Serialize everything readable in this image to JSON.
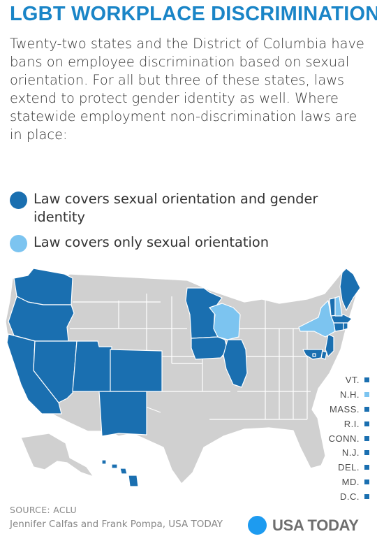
{
  "title": "LGBT WORKPLACE DISCRIMINATION",
  "intro": "Twenty-two states and the District of Columbia have bans on employee discrimination based on sexual orientation. For all but three of these states, laws extend to protect gender identity as well. Where statewide employment non-discrimination laws are in place:",
  "colors": {
    "full": "#1a6fb0",
    "partial": "#7cc4f0",
    "none": "#d0d0d0",
    "border": "#ffffff"
  },
  "legend": [
    {
      "key": "full",
      "label": "Law covers sexual orientation and gender identity"
    },
    {
      "key": "partial",
      "label": "Law covers only sexual orientation"
    }
  ],
  "states_full": [
    "Wash.",
    "Ore.",
    "Calif.",
    "Nev.",
    "Utah",
    "Colo.",
    "N.M.",
    "Minn.",
    "Iowa",
    "Ill.",
    "Maine",
    "Hawaii"
  ],
  "states_partial": [
    "Wis.",
    "N.Y."
  ],
  "small_states": [
    {
      "name": "VT.",
      "key": "full"
    },
    {
      "name": "N.H.",
      "key": "partial"
    },
    {
      "name": "MASS.",
      "key": "full"
    },
    {
      "name": "R.I.",
      "key": "full"
    },
    {
      "name": "CONN.",
      "key": "full"
    },
    {
      "name": "N.J.",
      "key": "full"
    },
    {
      "name": "DEL.",
      "key": "full"
    },
    {
      "name": "MD.",
      "key": "full"
    },
    {
      "name": "D.C.",
      "key": "full"
    }
  ],
  "source": "SOURCE: ACLU",
  "credit": "Jennifer Calfas and Frank Pompa, USA TODAY",
  "brand": "USA TODAY"
}
